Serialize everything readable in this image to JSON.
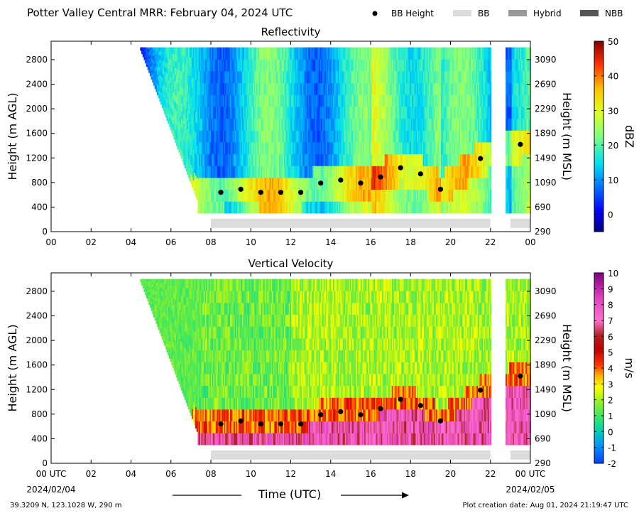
{
  "header": {
    "title": "Potter Valley Central MRR:  February 04, 2024 UTC",
    "legend": [
      {
        "label": "BB Height",
        "kind": "dot",
        "color": "#000000"
      },
      {
        "label": "BB",
        "kind": "box",
        "color": "#dcdcdc"
      },
      {
        "label": "Hybrid",
        "kind": "box",
        "color": "#999999"
      },
      {
        "label": "NBB",
        "kind": "box",
        "color": "#555555"
      }
    ]
  },
  "footer": {
    "xlabel": "Time (UTC)",
    "start_date": "2024/02/04",
    "end_date": "2024/02/05",
    "location": "39.3209 N, 123.1028 W, 290 m",
    "created": "Plot creation date: Aug 01, 2024 21:19:47 UTC"
  },
  "chart_data": [
    {
      "type": "heatmap",
      "title": "Reflectivity",
      "ylabel": "Height (m AGL)",
      "ylabel_right": "Height (m MSL)",
      "xlim": [
        0,
        24
      ],
      "ylim": [
        0,
        3100
      ],
      "x_ticks": [
        "00",
        "02",
        "04",
        "06",
        "08",
        "10",
        "12",
        "14",
        "16",
        "18",
        "20",
        "22",
        "00"
      ],
      "y_ticks": [
        0,
        400,
        800,
        1200,
        1600,
        2000,
        2400,
        2800
      ],
      "y_ticks_right": [
        290,
        690,
        1090,
        1490,
        1890,
        2290,
        2690,
        3090
      ],
      "colorbar": {
        "label": "dBZ",
        "min": -5,
        "max": 50,
        "ticks": [
          0,
          10,
          20,
          30,
          40,
          50
        ]
      },
      "bb_height": [
        {
          "x": 8.5,
          "y": 640
        },
        {
          "x": 9.5,
          "y": 690
        },
        {
          "x": 10.5,
          "y": 640
        },
        {
          "x": 11.5,
          "y": 640
        },
        {
          "x": 12.5,
          "y": 640
        },
        {
          "x": 13.5,
          "y": 790
        },
        {
          "x": 14.5,
          "y": 840
        },
        {
          "x": 15.5,
          "y": 790
        },
        {
          "x": 16.5,
          "y": 890
        },
        {
          "x": 17.5,
          "y": 1040
        },
        {
          "x": 18.5,
          "y": 940
        },
        {
          "x": 19.5,
          "y": 690
        },
        {
          "x": 21.5,
          "y": 1190
        },
        {
          "x": 23.5,
          "y": 1420
        }
      ],
      "bb_type_bars": [
        {
          "start": 8.0,
          "end": 22.0,
          "type": "BB"
        },
        {
          "start": 23.0,
          "end": 24.0,
          "type": "BB"
        }
      ]
    },
    {
      "type": "heatmap",
      "title": "Vertical Velocity",
      "ylabel": "Height (m AGL)",
      "ylabel_right": "Height (m MSL)",
      "xlim": [
        0,
        24
      ],
      "ylim": [
        0,
        3100
      ],
      "x_ticks": [
        "00 UTC",
        "02",
        "04",
        "06",
        "08",
        "10",
        "12",
        "14",
        "16",
        "18",
        "20",
        "22",
        "00 UTC"
      ],
      "y_ticks": [
        0,
        400,
        800,
        1200,
        1600,
        2000,
        2400,
        2800
      ],
      "y_ticks_right": [
        290,
        690,
        1090,
        1490,
        1890,
        2290,
        2690,
        3090
      ],
      "colorbar": {
        "label": "m/s",
        "min": -2,
        "max": 10,
        "ticks": [
          -2,
          -1,
          0,
          1,
          2,
          3,
          4,
          5,
          6,
          7,
          8,
          9,
          10
        ]
      },
      "bb_height": [
        {
          "x": 8.5,
          "y": 640
        },
        {
          "x": 9.5,
          "y": 690
        },
        {
          "x": 10.5,
          "y": 640
        },
        {
          "x": 11.5,
          "y": 640
        },
        {
          "x": 12.5,
          "y": 640
        },
        {
          "x": 13.5,
          "y": 790
        },
        {
          "x": 14.5,
          "y": 840
        },
        {
          "x": 15.5,
          "y": 790
        },
        {
          "x": 16.5,
          "y": 890
        },
        {
          "x": 17.5,
          "y": 1040
        },
        {
          "x": 18.5,
          "y": 940
        },
        {
          "x": 19.5,
          "y": 690
        },
        {
          "x": 21.5,
          "y": 1190
        },
        {
          "x": 23.5,
          "y": 1420
        }
      ],
      "bb_type_bars": [
        {
          "start": 8.0,
          "end": 22.0,
          "type": "BB"
        },
        {
          "start": 23.0,
          "end": 24.0,
          "type": "BB"
        }
      ]
    }
  ]
}
